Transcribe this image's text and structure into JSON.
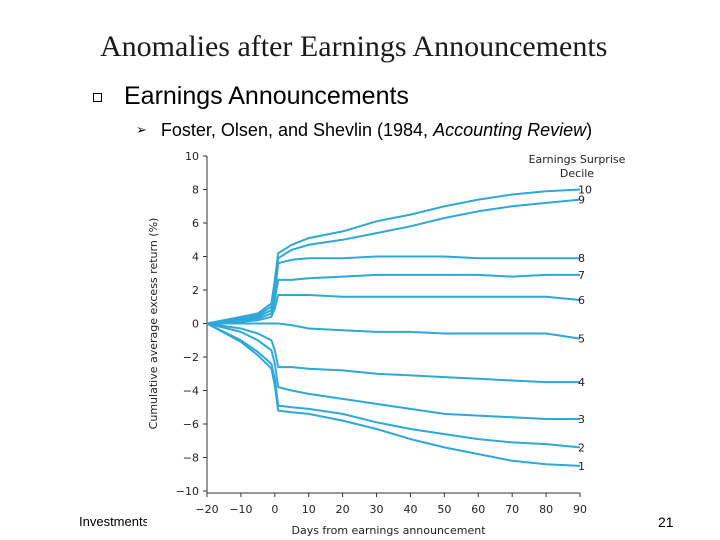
{
  "slide": {
    "title": "Anomalies after Earnings Announcements",
    "bullet1": "Earnings Announcements",
    "bullet2_pre": "Foster, Olsen, and Shevlin (1984, ",
    "bullet2_em": "Accounting Review",
    "bullet2_post": ")",
    "footer": "Investments",
    "page_number": "21",
    "bullet1_icon": "square-bullet-icon",
    "bullet2_icon": "arrow-bullet-icon"
  },
  "chart_data": {
    "type": "line",
    "ylabel": "Cumulative average excess return (%)",
    "xlabel": "Days from earnings announcement",
    "legend_title": [
      "Earnings Surprise",
      "Decile"
    ],
    "xlim": [
      -20,
      90
    ],
    "ylim": [
      -10,
      10
    ],
    "xticks": [
      "−20",
      "−10",
      "0",
      "10",
      "20",
      "30",
      "40",
      "50",
      "60",
      "70",
      "80",
      "90"
    ],
    "yticks": [
      "10",
      "8",
      "6",
      "4",
      "2",
      "0",
      "−2",
      "−4",
      "−6",
      "−8",
      "−10"
    ],
    "grid": false,
    "line_color": "#2ea8d8",
    "x": [
      -20,
      -10,
      -5,
      -1,
      0,
      1,
      5,
      10,
      20,
      30,
      40,
      50,
      60,
      70,
      80,
      90
    ],
    "series": [
      {
        "name": "10",
        "values": [
          0,
          0.4,
          0.6,
          1.2,
          2.6,
          4.2,
          4.7,
          5.1,
          5.5,
          6.1,
          6.5,
          7.0,
          7.4,
          7.7,
          7.9,
          8.0
        ]
      },
      {
        "name": "9",
        "values": [
          0,
          0.3,
          0.5,
          1.0,
          2.3,
          3.9,
          4.4,
          4.7,
          5.0,
          5.4,
          5.8,
          6.3,
          6.7,
          7.0,
          7.2,
          7.4
        ]
      },
      {
        "name": "8",
        "values": [
          0,
          0.3,
          0.4,
          0.8,
          1.7,
          3.6,
          3.8,
          3.9,
          3.9,
          4.0,
          4.0,
          4.0,
          3.9,
          3.9,
          3.9,
          3.9
        ]
      },
      {
        "name": "7",
        "values": [
          0,
          0.2,
          0.3,
          0.6,
          1.4,
          2.6,
          2.6,
          2.7,
          2.8,
          2.9,
          2.9,
          2.9,
          2.9,
          2.8,
          2.9,
          2.9
        ]
      },
      {
        "name": "6",
        "values": [
          0,
          0.1,
          0.2,
          0.4,
          0.9,
          1.7,
          1.7,
          1.7,
          1.6,
          1.6,
          1.6,
          1.6,
          1.6,
          1.6,
          1.6,
          1.4
        ]
      },
      {
        "name": "5",
        "values": [
          0,
          0,
          0,
          0,
          0,
          0,
          -0.1,
          -0.3,
          -0.4,
          -0.5,
          -0.5,
          -0.6,
          -0.6,
          -0.6,
          -0.6,
          -0.9
        ]
      },
      {
        "name": "4",
        "values": [
          0,
          -0.3,
          -0.6,
          -1.0,
          -1.6,
          -2.6,
          -2.6,
          -2.7,
          -2.8,
          -3.0,
          -3.1,
          -3.2,
          -3.3,
          -3.4,
          -3.5,
          -3.5
        ]
      },
      {
        "name": "3",
        "values": [
          0,
          -0.5,
          -1.0,
          -1.6,
          -2.4,
          -3.8,
          -4.0,
          -4.2,
          -4.5,
          -4.8,
          -5.1,
          -5.4,
          -5.5,
          -5.6,
          -5.7,
          -5.7
        ]
      },
      {
        "name": "2",
        "values": [
          0,
          -1.0,
          -1.7,
          -2.4,
          -3.3,
          -4.9,
          -5.0,
          -5.1,
          -5.4,
          -5.9,
          -6.3,
          -6.6,
          -6.9,
          -7.1,
          -7.2,
          -7.4
        ]
      },
      {
        "name": "1",
        "values": [
          0,
          -1.1,
          -1.9,
          -2.7,
          -3.7,
          -5.2,
          -5.3,
          -5.4,
          -5.8,
          -6.3,
          -6.9,
          -7.4,
          -7.8,
          -8.2,
          -8.4,
          -8.5
        ]
      }
    ]
  }
}
